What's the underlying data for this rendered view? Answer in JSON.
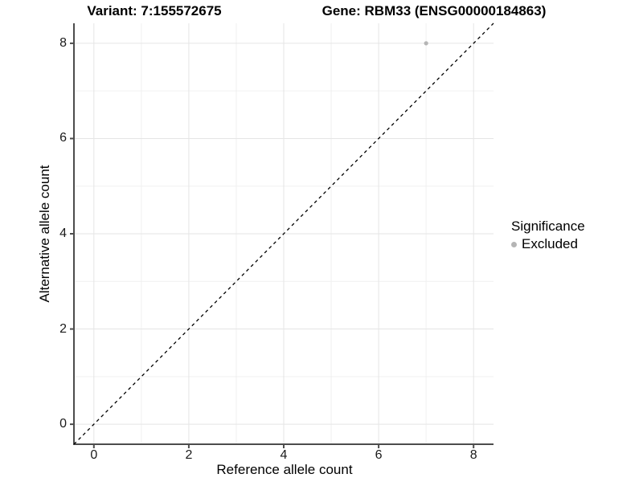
{
  "titles": {
    "variant": "Variant: 7:155572675",
    "gene": "Gene: RBM33 (ENSG00000184863)"
  },
  "chart_data": {
    "type": "scatter",
    "xlabel": "Reference allele count",
    "ylabel": "Alternative allele count",
    "xlim": [
      0,
      8
    ],
    "ylim": [
      0,
      8
    ],
    "x_ticks": [
      0,
      2,
      4,
      6,
      8
    ],
    "y_ticks": [
      0,
      2,
      4,
      6,
      8
    ],
    "x_minor_ticks": [
      1,
      3,
      5,
      7
    ],
    "y_minor_ticks": [
      1,
      3,
      5,
      7
    ],
    "grid": true,
    "points": [
      {
        "x": 7,
        "y": 8,
        "series": "Excluded",
        "color": "#b5b5b5"
      }
    ],
    "identity_line": {
      "equation": "y = x",
      "style": "dashed",
      "color": "#000000"
    },
    "legend": {
      "title": "Significance",
      "position": "right",
      "items": [
        {
          "label": "Excluded",
          "color": "#b5b5b5",
          "marker": "circle"
        }
      ]
    },
    "colors": {
      "major_grid": "#e5e5e5",
      "minor_grid": "#f0f0f0",
      "axis_line": "#4d4d4d",
      "tick_mark": "#4d4d4d",
      "point": "#b5b5b5"
    }
  }
}
